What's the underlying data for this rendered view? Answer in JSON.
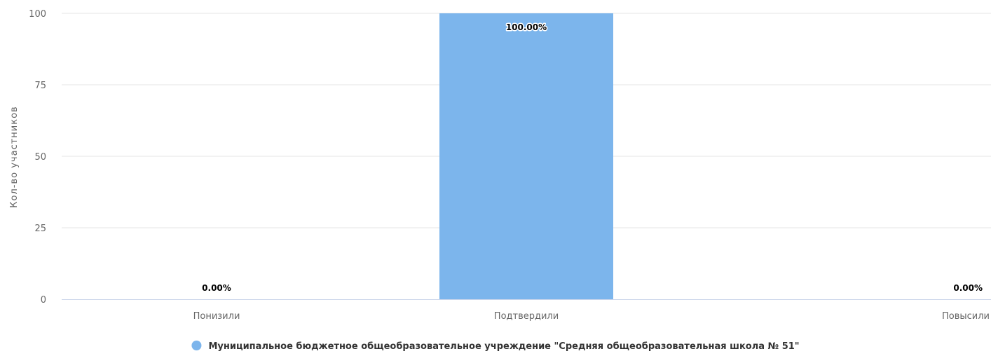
{
  "chart_data": {
    "type": "bar",
    "title": "",
    "xlabel": "",
    "ylabel": "Кол-во участников",
    "ylim": [
      0,
      100
    ],
    "yticks": [
      0,
      25,
      50,
      75,
      100
    ],
    "categories": [
      "Понизили",
      "Подтвердили",
      "Повысили"
    ],
    "series": [
      {
        "name": "Муниципальное бюджетное общеобразовательное учреждение \"Средняя общеобразовательная школа № 51\"",
        "values": [
          0,
          100,
          0
        ],
        "labels": [
          "0.00%",
          "100.00%",
          "0.00%"
        ],
        "color": "#7cb5ec"
      }
    ],
    "grid": true,
    "legend": "bottom-center"
  },
  "colors": {
    "grid": "#e6e6e6",
    "axis": "#ccd6eb",
    "text": "#666666"
  }
}
